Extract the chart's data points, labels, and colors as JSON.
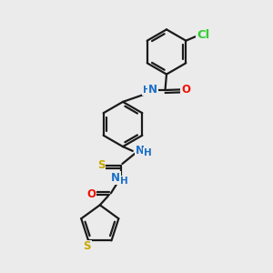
{
  "bg_color": "#ebebeb",
  "line_color": "#1a1a1a",
  "bond_width": 1.6,
  "atom_colors": {
    "Cl": "#32cd32",
    "N": "#1b6fc8",
    "O": "#ee1100",
    "S": "#c8a800",
    "C": "#1a1a1a"
  },
  "font_size": 8.5,
  "fig_size": [
    3.0,
    3.0
  ],
  "dpi": 100,
  "xlim": [
    0,
    10
  ],
  "ylim": [
    0,
    10
  ]
}
